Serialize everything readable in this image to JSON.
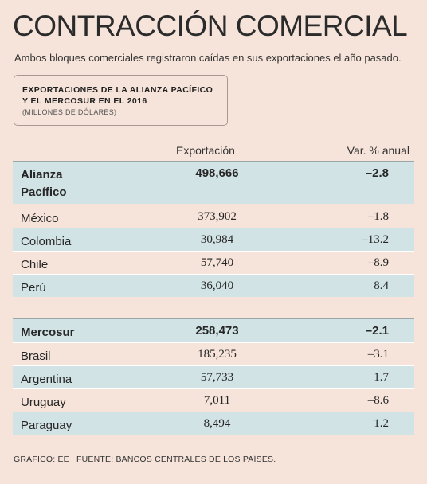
{
  "title": "CONTRACCIÓN COMERCIAL",
  "subtitle": "Ambos bloques comerciales registraron caídas en sus exportaciones el año pasado.",
  "box": {
    "line1": "EXPORTACIONES DE LA ALIANZA PACÍFICO",
    "line2": "Y EL MERCOSUR EN EL 2016",
    "unit": "(MILLONES DE DÓLARES)"
  },
  "headers": {
    "export": "Exportación",
    "var": "Var. % anual"
  },
  "footer": {
    "credit": "GRÁFICO: EE",
    "source": "FUENTE: BANCOS CENTRALES DE LOS PAÍSES."
  },
  "colors": {
    "background": "#f6e4da",
    "row_shade": "#d2e3e6"
  },
  "chart_data": {
    "type": "table",
    "columns": [
      "",
      "Exportación",
      "Var. % anual"
    ],
    "groups": [
      {
        "name": "Alianza Pacífico",
        "export": "498,666",
        "var": "–2.8",
        "rows": [
          {
            "name": "México",
            "export": "373,902",
            "var": "–1.8"
          },
          {
            "name": "Colombia",
            "export": "30,984",
            "var": "–13.2"
          },
          {
            "name": "Chile",
            "export": "57,740",
            "var": "–8.9"
          },
          {
            "name": "Perú",
            "export": "36,040",
            "var": "8.4"
          }
        ]
      },
      {
        "name": "Mercosur",
        "export": "258,473",
        "var": "–2.1",
        "rows": [
          {
            "name": "Brasil",
            "export": "185,235",
            "var": "–3.1"
          },
          {
            "name": "Argentina",
            "export": "57,733",
            "var": "1.7"
          },
          {
            "name": "Uruguay",
            "export": "7,011",
            "var": "–8.6"
          },
          {
            "name": "Paraguay",
            "export": "8,494",
            "var": "1.2"
          }
        ]
      }
    ]
  }
}
